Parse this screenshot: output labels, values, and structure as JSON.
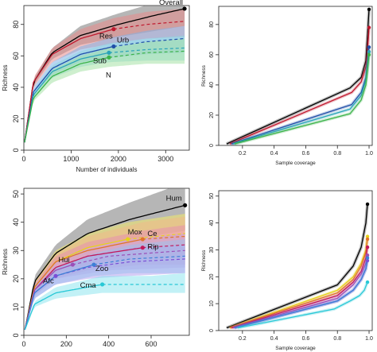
{
  "chart_data": [
    {
      "panel": "top-left",
      "type": "line",
      "subtype": "rarefaction-extrapolation",
      "xlabel": "Number of individuals",
      "ylabel": "Richness",
      "xlim": [
        0,
        3500
      ],
      "ylim": [
        0,
        92
      ],
      "xticks": [
        0,
        1000,
        2000,
        3000
      ],
      "yticks": [
        0,
        20,
        40,
        60,
        80
      ],
      "series": [
        {
          "name": "Overall",
          "color": "#000000",
          "band": "#7a7a7a",
          "x": [
            15,
            200,
            600,
            1200,
            2000,
            2800,
            3400
          ],
          "y": [
            5,
            43,
            62,
            73,
            80,
            86,
            90
          ],
          "lo": [
            5,
            41,
            58,
            67,
            72,
            76,
            79
          ],
          "hi": [
            5,
            45,
            65,
            79,
            87,
            94,
            100
          ],
          "observed": {
            "x": 3400,
            "y": 90
          },
          "extrapolated_from": 3400
        },
        {
          "name": "Res",
          "color": "#c0192e",
          "band": "#e88a8a",
          "x": [
            15,
            200,
            600,
            1200,
            1900,
            2600,
            3400
          ],
          "y": [
            5,
            43,
            61,
            71,
            77,
            80,
            82
          ],
          "lo": [
            5,
            40,
            56,
            64,
            68,
            71,
            72
          ],
          "hi": [
            5,
            46,
            65,
            77,
            84,
            88,
            90
          ],
          "observed": {
            "x": 1900,
            "y": 77
          },
          "extrapolated_from": 1900
        },
        {
          "name": "Urb",
          "color": "#1f4ea8",
          "band": "#7fb2e8",
          "x": [
            15,
            200,
            600,
            1200,
            1900,
            2600,
            3400
          ],
          "y": [
            5,
            37,
            52,
            61,
            66,
            69,
            71
          ],
          "lo": [
            5,
            35,
            48,
            56,
            59,
            61,
            62
          ],
          "hi": [
            5,
            40,
            56,
            66,
            72,
            76,
            79
          ],
          "observed": {
            "x": 1900,
            "y": 66
          },
          "extrapolated_from": 1900
        },
        {
          "name": "Sub",
          "color": "#2aa3b8",
          "band": "#8fd6e0",
          "x": [
            15,
            200,
            600,
            1200,
            1800,
            2600,
            3400
          ],
          "y": [
            5,
            35,
            50,
            58,
            62,
            64,
            65
          ],
          "lo": [
            5,
            33,
            46,
            53,
            56,
            57,
            57
          ],
          "hi": [
            5,
            38,
            54,
            63,
            68,
            71,
            73
          ],
          "observed": {
            "x": 1800,
            "y": 62
          },
          "extrapolated_from": 1800
        },
        {
          "name": "N",
          "color": "#3cb34a",
          "band": "#a6e2a6",
          "x": [
            15,
            200,
            600,
            1200,
            1800,
            2600,
            3400
          ],
          "y": [
            5,
            33,
            47,
            55,
            59,
            62,
            63
          ],
          "lo": [
            5,
            31,
            43,
            50,
            53,
            55,
            55
          ],
          "hi": [
            5,
            35,
            51,
            60,
            65,
            69,
            71
          ],
          "observed": {
            "x": 1800,
            "y": 59
          },
          "extrapolated_from": 1800
        }
      ]
    },
    {
      "panel": "top-right",
      "type": "line",
      "subtype": "coverage-based",
      "xlabel": "Sample coverage",
      "ylabel": "Richness",
      "xlim": [
        0.05,
        1.02
      ],
      "ylim": [
        0,
        92
      ],
      "xticks": [
        0.2,
        0.4,
        0.6,
        0.8,
        1.0
      ],
      "yticks": [
        0,
        20,
        40,
        60,
        80
      ],
      "series": [
        {
          "name": "Overall",
          "color": "#000000",
          "x": [
            0.1,
            0.88,
            0.95,
            0.98,
            0.99,
            1.0
          ],
          "y": [
            1,
            38,
            45,
            56,
            72,
            90
          ]
        },
        {
          "name": "Res",
          "color": "#c0192e",
          "x": [
            0.12,
            0.89,
            0.95,
            0.98,
            0.99,
            1.0
          ],
          "y": [
            1,
            35,
            42,
            52,
            62,
            78
          ]
        },
        {
          "name": "Urb",
          "color": "#1f4ea8",
          "x": [
            0.13,
            0.89,
            0.95,
            0.98,
            0.99,
            1.0
          ],
          "y": [
            1,
            27,
            35,
            45,
            55,
            65
          ]
        },
        {
          "name": "Sub",
          "color": "#2aa3b8",
          "x": [
            0.14,
            0.88,
            0.95,
            0.98,
            0.99,
            1.0
          ],
          "y": [
            1,
            24,
            33,
            43,
            52,
            62
          ]
        },
        {
          "name": "N",
          "color": "#3cb34a",
          "x": [
            0.15,
            0.88,
            0.95,
            0.98,
            0.99,
            1.0
          ],
          "y": [
            1,
            21,
            30,
            40,
            50,
            60
          ]
        }
      ]
    },
    {
      "panel": "bottom-left",
      "type": "line",
      "subtype": "rarefaction-extrapolation",
      "xlabel": "",
      "ylabel": "Richness",
      "xlim": [
        0,
        780
      ],
      "ylim": [
        0,
        52
      ],
      "xticks": [
        0,
        200,
        400,
        600
      ],
      "yticks": [
        0,
        10,
        20,
        30,
        40,
        50
      ],
      "series": [
        {
          "name": "Hum",
          "color": "#000000",
          "band": "#7a7a7a",
          "x": [
            5,
            50,
            150,
            300,
            500,
            760
          ],
          "y": [
            2,
            19,
            29,
            36,
            41,
            46
          ],
          "lo": [
            2,
            17,
            26,
            31,
            34,
            37
          ],
          "hi": [
            2,
            21,
            32,
            41,
            47,
            54
          ],
          "observed": {
            "x": 760,
            "y": 46
          },
          "extrapolated_from": 760
        },
        {
          "name": "Mox",
          "color": "#e6d21a",
          "band": "#f2e96a",
          "x": [
            5,
            50,
            150,
            300,
            490,
            760
          ],
          "y": [
            2,
            17,
            26,
            31,
            34,
            36
          ],
          "lo": [
            2,
            15,
            22,
            26,
            28,
            29
          ],
          "hi": [
            2,
            19,
            30,
            36,
            40,
            43
          ],
          "observed": {
            "x": 490,
            "y": 34
          },
          "extrapolated_from": 490
        },
        {
          "name": "Ce",
          "color": "#e0742a",
          "band": "#f0b98a",
          "x": [
            5,
            50,
            150,
            300,
            560,
            760
          ],
          "y": [
            2,
            17,
            26,
            30,
            34,
            35
          ],
          "lo": [
            2,
            15,
            22,
            25,
            27,
            28
          ],
          "hi": [
            2,
            19,
            29,
            35,
            40,
            42
          ],
          "observed": {
            "x": 560,
            "y": 34
          },
          "extrapolated_from": 560
        },
        {
          "name": "Rip",
          "color": "#c2185b",
          "band": "#e88fb0",
          "x": [
            5,
            50,
            150,
            300,
            560,
            760
          ],
          "y": [
            2,
            16,
            24,
            28,
            31,
            32
          ],
          "lo": [
            2,
            14,
            20,
            23,
            25,
            25
          ],
          "hi": [
            2,
            18,
            28,
            33,
            37,
            39
          ],
          "observed": {
            "x": 560,
            "y": 31
          },
          "extrapolated_from": 560
        },
        {
          "name": "Hui",
          "color": "#9b4fb8",
          "band": "#c9a2dc",
          "x": [
            5,
            50,
            150,
            230,
            400,
            760
          ],
          "y": [
            2,
            16,
            23,
            25,
            28,
            30
          ],
          "lo": [
            2,
            14,
            20,
            21,
            23,
            24
          ],
          "hi": [
            2,
            18,
            26,
            29,
            33,
            36
          ],
          "observed": {
            "x": 230,
            "y": 25
          },
          "extrapolated_from": 230
        },
        {
          "name": "Afc",
          "color": "#7a4fd6",
          "band": "#b5a2ee",
          "x": [
            5,
            50,
            150,
            300,
            500,
            760
          ],
          "y": [
            2,
            15,
            21,
            24,
            26,
            27
          ],
          "lo": [
            2,
            13,
            18,
            20,
            21,
            22
          ],
          "hi": [
            2,
            17,
            24,
            28,
            31,
            32
          ],
          "observed": {
            "x": 150,
            "y": 21
          },
          "extrapolated_from": 150
        },
        {
          "name": "Zoo",
          "color": "#3d7fd6",
          "band": "#9ec0ee",
          "x": [
            5,
            50,
            150,
            330,
            500,
            760
          ],
          "y": [
            2,
            15,
            21,
            25,
            27,
            28
          ],
          "lo": [
            2,
            13,
            18,
            21,
            22,
            22
          ],
          "hi": [
            2,
            17,
            24,
            29,
            32,
            34
          ],
          "observed": {
            "x": 330,
            "y": 25
          },
          "extrapolated_from": 330
        },
        {
          "name": "Cma",
          "color": "#28c8d6",
          "band": "#8fe6ee",
          "x": [
            5,
            50,
            150,
            370,
            600,
            760
          ],
          "y": [
            2,
            11,
            15,
            18,
            18,
            18
          ],
          "lo": [
            2,
            10,
            13,
            15,
            15,
            15
          ],
          "hi": [
            2,
            12,
            17,
            21,
            21,
            22
          ],
          "observed": {
            "x": 370,
            "y": 18
          },
          "extrapolated_from": 370
        }
      ]
    },
    {
      "panel": "bottom-right",
      "type": "line",
      "subtype": "coverage-based",
      "xlabel": "Sample coverage",
      "ylabel": "Richness",
      "xlim": [
        0.05,
        1.02
      ],
      "ylim": [
        0,
        52
      ],
      "xticks": [
        0.2,
        0.4,
        0.6,
        0.8,
        1.0
      ],
      "yticks": [
        0,
        10,
        20,
        30,
        40,
        50
      ],
      "series": [
        {
          "name": "Hum",
          "color": "#000000",
          "x": [
            0.1,
            0.8,
            0.9,
            0.95,
            0.98,
            0.99
          ],
          "y": [
            1,
            17,
            24,
            31,
            40,
            47
          ]
        },
        {
          "name": "Mox",
          "color": "#e6d21a",
          "x": [
            0.12,
            0.8,
            0.9,
            0.95,
            0.98,
            0.99
          ],
          "y": [
            1,
            15,
            20,
            25,
            30,
            35
          ]
        },
        {
          "name": "Ce",
          "color": "#e0742a",
          "x": [
            0.12,
            0.8,
            0.9,
            0.95,
            0.98,
            0.99
          ],
          "y": [
            1,
            14,
            19,
            24,
            29,
            34
          ]
        },
        {
          "name": "Rip",
          "color": "#c2185b",
          "x": [
            0.13,
            0.8,
            0.9,
            0.95,
            0.98,
            0.99
          ],
          "y": [
            1,
            13,
            18,
            22,
            27,
            31
          ]
        },
        {
          "name": "Hui",
          "color": "#9b4fb8",
          "x": [
            0.14,
            0.8,
            0.9,
            0.95,
            0.98,
            0.99
          ],
          "y": [
            1,
            12,
            17,
            21,
            25,
            28
          ]
        },
        {
          "name": "Afc",
          "color": "#7a4fd6",
          "x": [
            0.15,
            0.8,
            0.9,
            0.95,
            0.98,
            0.99
          ],
          "y": [
            1,
            11,
            15,
            19,
            23,
            26
          ]
        },
        {
          "name": "Zoo",
          "color": "#3d7fd6",
          "x": [
            0.15,
            0.8,
            0.9,
            0.95,
            0.98,
            0.99
          ],
          "y": [
            1,
            11,
            15,
            19,
            23,
            27
          ]
        },
        {
          "name": "Cma",
          "color": "#28c8d6",
          "x": [
            0.17,
            0.78,
            0.88,
            0.94,
            0.97,
            0.99
          ],
          "y": [
            1,
            8,
            11,
            13,
            15,
            18
          ]
        }
      ]
    }
  ]
}
